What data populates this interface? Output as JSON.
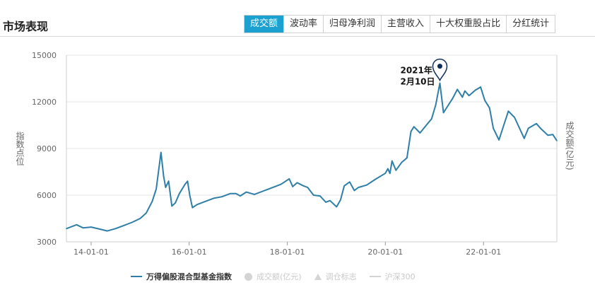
{
  "header": {
    "title": "市场表现",
    "tabs": [
      {
        "label": "成交额",
        "active": true
      },
      {
        "label": "波动率",
        "active": false
      },
      {
        "label": "归母净利润",
        "active": false
      },
      {
        "label": "主营收入",
        "active": false
      },
      {
        "label": "十大权重股占比",
        "active": false
      },
      {
        "label": "分红统计",
        "active": false
      }
    ]
  },
  "colors": {
    "accent": "#1ba0cf",
    "series": "#2e7fa8",
    "marker": "#0d2d5a",
    "grid": "#e6e6e6",
    "muted": "#c8c8c8"
  },
  "legend": [
    {
      "label": "万得偏股混合型基金指数",
      "icon": "line",
      "active": true
    },
    {
      "label": "成交额(亿元)",
      "icon": "circle",
      "active": false
    },
    {
      "label": "调仓标志",
      "icon": "triangle",
      "active": false
    },
    {
      "label": "沪深300",
      "icon": "line",
      "active": false
    }
  ],
  "chart_data": {
    "type": "line",
    "ylabel": "指数点位",
    "y2label": "成交额(亿元)",
    "ylim": [
      3000,
      15000
    ],
    "yticks": [
      "15000",
      "12000",
      "9000",
      "6000",
      "3000"
    ],
    "xlim": [
      "2013-07-01",
      "2023-07-01"
    ],
    "xticks": [
      {
        "date": "2014-01-01",
        "label": "14-01-01"
      },
      {
        "date": "2016-01-01",
        "label": "16-01-01"
      },
      {
        "date": "2018-01-01",
        "label": "18-01-01"
      },
      {
        "date": "2020-01-01",
        "label": "20-01-01"
      },
      {
        "date": "2022-01-01",
        "label": "22-01-01"
      }
    ],
    "annotation": {
      "date": "2021-02-10",
      "value": 13200,
      "lines": [
        "2021年",
        "2月10日"
      ]
    },
    "series": [
      {
        "name": "万得偏股混合型基金指数",
        "points": [
          [
            "2013-07-01",
            3850
          ],
          [
            "2013-09-15",
            4100
          ],
          [
            "2013-11-01",
            3900
          ],
          [
            "2014-01-01",
            3950
          ],
          [
            "2014-03-15",
            3800
          ],
          [
            "2014-05-01",
            3700
          ],
          [
            "2014-07-01",
            3850
          ],
          [
            "2014-09-01",
            4050
          ],
          [
            "2014-11-01",
            4250
          ],
          [
            "2015-01-01",
            4500
          ],
          [
            "2015-02-15",
            4850
          ],
          [
            "2015-04-01",
            5600
          ],
          [
            "2015-05-01",
            6400
          ],
          [
            "2015-06-05",
            8750
          ],
          [
            "2015-06-25",
            7200
          ],
          [
            "2015-07-10",
            6500
          ],
          [
            "2015-08-01",
            6900
          ],
          [
            "2015-08-25",
            5300
          ],
          [
            "2015-09-20",
            5500
          ],
          [
            "2015-10-20",
            6100
          ],
          [
            "2015-12-01",
            6700
          ],
          [
            "2015-12-20",
            6900
          ],
          [
            "2016-01-05",
            6000
          ],
          [
            "2016-01-25",
            5200
          ],
          [
            "2016-03-01",
            5400
          ],
          [
            "2016-05-01",
            5600
          ],
          [
            "2016-07-01",
            5800
          ],
          [
            "2016-09-01",
            5900
          ],
          [
            "2016-11-01",
            6100
          ],
          [
            "2016-12-15",
            6100
          ],
          [
            "2017-01-15",
            5950
          ],
          [
            "2017-03-01",
            6200
          ],
          [
            "2017-05-01",
            6050
          ],
          [
            "2017-07-01",
            6250
          ],
          [
            "2017-09-01",
            6450
          ],
          [
            "2017-11-15",
            6700
          ],
          [
            "2018-01-15",
            7050
          ],
          [
            "2018-02-10",
            6550
          ],
          [
            "2018-03-15",
            6800
          ],
          [
            "2018-05-01",
            6600
          ],
          [
            "2018-06-01",
            6500
          ],
          [
            "2018-07-15",
            6000
          ],
          [
            "2018-09-01",
            5950
          ],
          [
            "2018-10-15",
            5550
          ],
          [
            "2018-11-15",
            5650
          ],
          [
            "2019-01-03",
            5250
          ],
          [
            "2019-02-01",
            5700
          ],
          [
            "2019-03-01",
            6600
          ],
          [
            "2019-04-10",
            6850
          ],
          [
            "2019-05-15",
            6300
          ],
          [
            "2019-06-15",
            6500
          ],
          [
            "2019-08-15",
            6650
          ],
          [
            "2019-10-15",
            7000
          ],
          [
            "2019-12-31",
            7400
          ],
          [
            "2020-01-20",
            7700
          ],
          [
            "2020-02-04",
            7400
          ],
          [
            "2020-02-20",
            8200
          ],
          [
            "2020-03-20",
            7600
          ],
          [
            "2020-05-01",
            8100
          ],
          [
            "2020-06-10",
            8400
          ],
          [
            "2020-07-10",
            10100
          ],
          [
            "2020-08-01",
            10400
          ],
          [
            "2020-09-15",
            10000
          ],
          [
            "2020-11-01",
            10500
          ],
          [
            "2020-12-10",
            10900
          ],
          [
            "2021-01-10",
            11800
          ],
          [
            "2021-02-10",
            13200
          ],
          [
            "2021-03-09",
            11300
          ],
          [
            "2021-04-15",
            11800
          ],
          [
            "2021-05-15",
            12200
          ],
          [
            "2021-06-20",
            12800
          ],
          [
            "2021-07-28",
            12300
          ],
          [
            "2021-08-15",
            12700
          ],
          [
            "2021-09-15",
            12400
          ],
          [
            "2021-11-01",
            12750
          ],
          [
            "2021-12-10",
            12950
          ],
          [
            "2022-01-10",
            12100
          ],
          [
            "2022-02-15",
            11600
          ],
          [
            "2022-03-15",
            10300
          ],
          [
            "2022-04-26",
            9550
          ],
          [
            "2022-06-01",
            10500
          ],
          [
            "2022-07-05",
            11400
          ],
          [
            "2022-08-20",
            11000
          ],
          [
            "2022-10-31",
            9650
          ],
          [
            "2022-12-01",
            10300
          ],
          [
            "2023-01-30",
            10600
          ],
          [
            "2023-03-01",
            10300
          ],
          [
            "2023-04-25",
            9850
          ],
          [
            "2023-06-01",
            9900
          ],
          [
            "2023-07-01",
            9500
          ]
        ]
      }
    ]
  }
}
